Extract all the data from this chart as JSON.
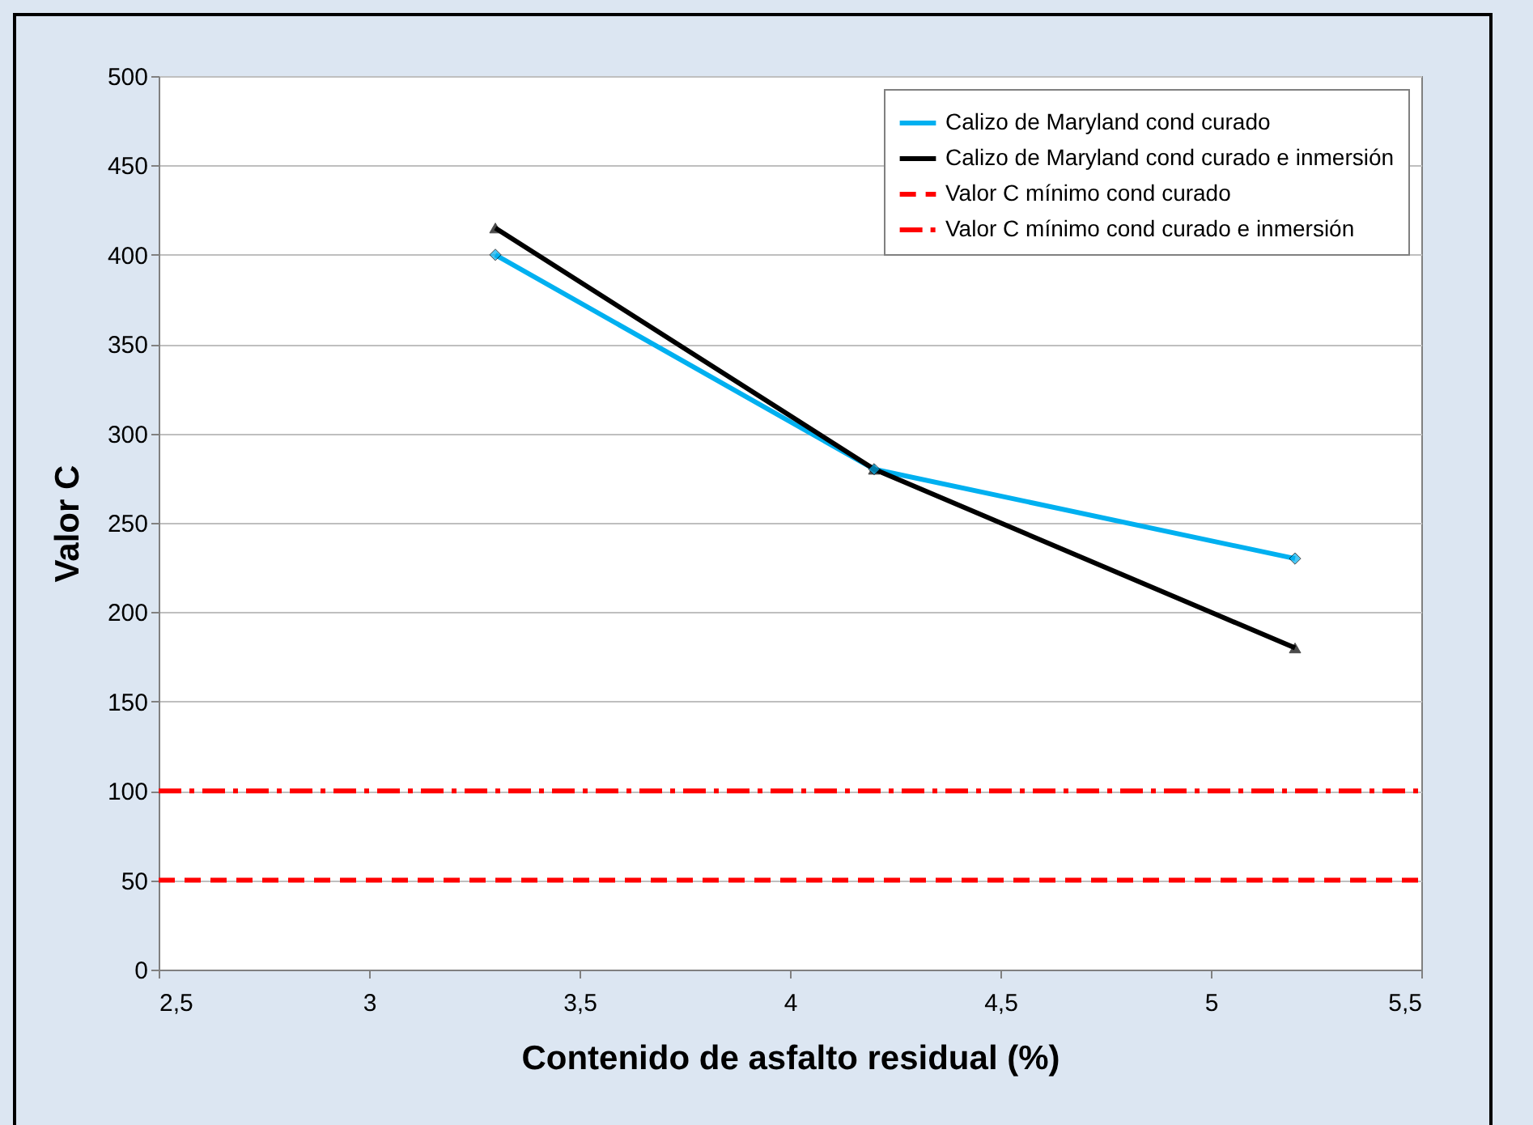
{
  "chart_data": {
    "type": "line",
    "xlabel": "Contenido de asfalto residual (%)",
    "ylabel": "Valor C",
    "xlim": [
      2.5,
      5.5
    ],
    "xticks": [
      {
        "value": 2.5,
        "label": "2,5"
      },
      3,
      {
        "value": 3.5,
        "label": "3,5"
      },
      4,
      {
        "value": 4.5,
        "label": "4,5"
      },
      5,
      {
        "value": 5.5,
        "label": "5,5"
      }
    ],
    "ylim": [
      0,
      500
    ],
    "yticks": [
      0,
      50,
      100,
      150,
      200,
      250,
      300,
      350,
      400,
      450,
      500
    ],
    "grid": "y",
    "legend": "top right",
    "series": [
      {
        "name": "Calizo de Maryland cond curado",
        "color": "#00b0f0",
        "x": [
          3.3,
          4.2,
          5.2
        ],
        "values": [
          400,
          280,
          230
        ],
        "marker": "diamond",
        "line_style": "solid"
      },
      {
        "name": "Calizo de Maryland cond curado e inmersión",
        "color": "#000000",
        "x": [
          3.3,
          4.2,
          5.2
        ],
        "values": [
          415,
          280,
          180
        ],
        "marker": "triangle",
        "line_style": "solid"
      },
      {
        "name": "Valor C mínimo cond curado",
        "color": "#ff0000",
        "x": [
          2.5,
          5.5
        ],
        "values": [
          50,
          50
        ],
        "marker": "none",
        "line_style": "dashed"
      },
      {
        "name": "Valor C mínimo cond curado e inmersión",
        "color": "#ff0000",
        "x": [
          2.5,
          5.5
        ],
        "values": [
          100,
          100
        ],
        "marker": "none",
        "line_style": "dashdot"
      }
    ]
  }
}
